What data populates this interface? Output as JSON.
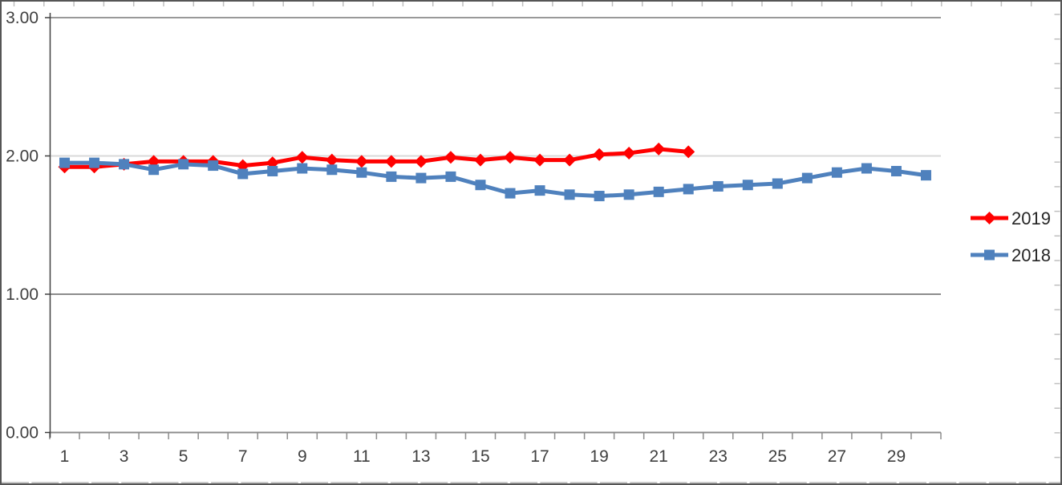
{
  "chart_data": {
    "type": "line",
    "title": "",
    "xlabel": "",
    "ylabel": "",
    "ylim": [
      0,
      3
    ],
    "grid": "horizontal-major",
    "legend_position": "right-middle",
    "x": [
      1,
      2,
      3,
      4,
      5,
      6,
      7,
      8,
      9,
      10,
      11,
      12,
      13,
      14,
      15,
      16,
      17,
      18,
      19,
      20,
      21,
      22,
      23,
      24,
      25,
      26,
      27,
      28,
      29,
      30
    ],
    "xtick_labels": [
      "1",
      "3",
      "5",
      "7",
      "9",
      "11",
      "13",
      "15",
      "17",
      "19",
      "21",
      "23",
      "25",
      "27",
      "29"
    ],
    "ytick_labels": [
      "0.00",
      "1.00",
      "2.00",
      "3.00"
    ],
    "series": [
      {
        "name": "2019",
        "color": "#FF0000",
        "marker": "diamond",
        "values": [
          1.92,
          1.92,
          1.94,
          1.96,
          1.96,
          1.96,
          1.93,
          1.95,
          1.99,
          1.97,
          1.96,
          1.96,
          1.96,
          1.99,
          1.97,
          1.99,
          1.97,
          1.97,
          2.01,
          2.02,
          2.05,
          2.03
        ]
      },
      {
        "name": "2018",
        "color": "#4F81BD",
        "marker": "square",
        "values": [
          1.95,
          1.95,
          1.94,
          1.9,
          1.94,
          1.93,
          1.87,
          1.89,
          1.91,
          1.9,
          1.88,
          1.85,
          1.84,
          1.85,
          1.79,
          1.73,
          1.75,
          1.72,
          1.71,
          1.72,
          1.74,
          1.76,
          1.78,
          1.79,
          1.8,
          1.84,
          1.88,
          1.91,
          1.89,
          1.86
        ]
      }
    ],
    "colors": {
      "axis_line": "#404040",
      "x_axis_line": "#8C8C8C",
      "gridline_top": "#999999",
      "gridline_light": "#D9D9D9",
      "gridline_dark": "#8C8C8C",
      "edge_tick": "#BFBFBF",
      "bottom_dash": "#C9C9C9",
      "tick_label": "#3F3F3F",
      "legend_text": "#262626"
    }
  }
}
